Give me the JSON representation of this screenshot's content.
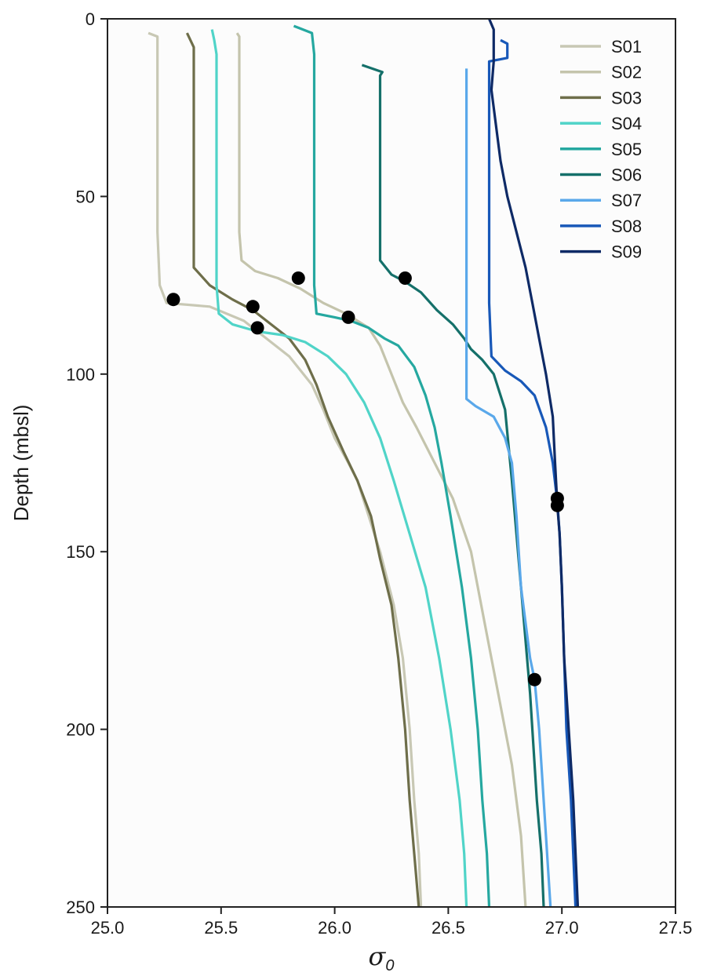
{
  "chart_data": {
    "type": "line",
    "ylabel": "Depth (mbsl)",
    "xlabel_symbol": "σ",
    "xlabel_subscript": "0",
    "xlim": [
      25.0,
      27.5
    ],
    "ylim": [
      250,
      0
    ],
    "y_inverted": true,
    "grid": false,
    "legend_position": "top-right",
    "xticks": [
      "25.0",
      "25.5",
      "26.0",
      "26.5",
      "27.0",
      "27.5"
    ],
    "yticks": [
      "0",
      "50",
      "100",
      "150",
      "200",
      "250"
    ],
    "series": [
      {
        "name": "S01",
        "color": "#c8c8b4",
        "points": [
          [
            25.18,
            4
          ],
          [
            25.22,
            5
          ],
          [
            25.22,
            20
          ],
          [
            25.22,
            40
          ],
          [
            25.22,
            60
          ],
          [
            25.23,
            75
          ],
          [
            25.26,
            80
          ],
          [
            25.45,
            81
          ],
          [
            25.6,
            85
          ],
          [
            25.7,
            90
          ],
          [
            25.8,
            95
          ],
          [
            25.9,
            103
          ],
          [
            25.95,
            110
          ],
          [
            26.0,
            118
          ],
          [
            26.06,
            125
          ],
          [
            26.1,
            130
          ],
          [
            26.15,
            140
          ],
          [
            26.2,
            150
          ],
          [
            26.26,
            165
          ],
          [
            26.3,
            180
          ],
          [
            26.33,
            200
          ],
          [
            26.35,
            220
          ],
          [
            26.37,
            235
          ],
          [
            26.38,
            250
          ]
        ]
      },
      {
        "name": "S02",
        "color": "#c4c4ac",
        "points": [
          [
            25.57,
            4
          ],
          [
            25.58,
            5
          ],
          [
            25.58,
            20
          ],
          [
            25.58,
            40
          ],
          [
            25.58,
            60
          ],
          [
            25.59,
            68
          ],
          [
            25.65,
            71
          ],
          [
            25.75,
            73
          ],
          [
            25.85,
            76
          ],
          [
            25.95,
            80
          ],
          [
            26.05,
            83
          ],
          [
            26.15,
            87
          ],
          [
            26.2,
            92
          ],
          [
            26.25,
            100
          ],
          [
            26.3,
            108
          ],
          [
            26.36,
            115
          ],
          [
            26.44,
            125
          ],
          [
            26.52,
            135
          ],
          [
            26.6,
            150
          ],
          [
            26.66,
            170
          ],
          [
            26.72,
            190
          ],
          [
            26.78,
            210
          ],
          [
            26.82,
            230
          ],
          [
            26.84,
            250
          ]
        ]
      },
      {
        "name": "S03",
        "color": "#6e6e4a",
        "points": [
          [
            25.35,
            4
          ],
          [
            25.38,
            8
          ],
          [
            25.38,
            20
          ],
          [
            25.38,
            40
          ],
          [
            25.38,
            60
          ],
          [
            25.38,
            70
          ],
          [
            25.45,
            75
          ],
          [
            25.55,
            79
          ],
          [
            25.64,
            82
          ],
          [
            25.72,
            86
          ],
          [
            25.8,
            90
          ],
          [
            25.87,
            96
          ],
          [
            25.92,
            103
          ],
          [
            25.97,
            112
          ],
          [
            26.04,
            122
          ],
          [
            26.1,
            130
          ],
          [
            26.16,
            140
          ],
          [
            26.2,
            152
          ],
          [
            26.25,
            165
          ],
          [
            26.28,
            180
          ],
          [
            26.31,
            200
          ],
          [
            26.33,
            220
          ],
          [
            26.35,
            235
          ],
          [
            26.37,
            250
          ]
        ]
      },
      {
        "name": "S04",
        "color": "#50d4c8",
        "points": [
          [
            25.46,
            3
          ],
          [
            25.47,
            6
          ],
          [
            25.48,
            10
          ],
          [
            25.48,
            20
          ],
          [
            25.48,
            40
          ],
          [
            25.48,
            60
          ],
          [
            25.48,
            75
          ],
          [
            25.49,
            83
          ],
          [
            25.55,
            86
          ],
          [
            25.66,
            88
          ],
          [
            25.77,
            89
          ],
          [
            25.87,
            91
          ],
          [
            25.97,
            95
          ],
          [
            26.05,
            100
          ],
          [
            26.13,
            108
          ],
          [
            26.2,
            118
          ],
          [
            26.26,
            130
          ],
          [
            26.33,
            145
          ],
          [
            26.4,
            160
          ],
          [
            26.46,
            180
          ],
          [
            26.51,
            200
          ],
          [
            26.55,
            220
          ],
          [
            26.57,
            235
          ],
          [
            26.58,
            250
          ]
        ]
      },
      {
        "name": "S05",
        "color": "#25a8a0",
        "points": [
          [
            25.82,
            2
          ],
          [
            25.9,
            4
          ],
          [
            25.91,
            10
          ],
          [
            25.91,
            20
          ],
          [
            25.91,
            40
          ],
          [
            25.91,
            60
          ],
          [
            25.91,
            75
          ],
          [
            25.92,
            83
          ],
          [
            26.0,
            84
          ],
          [
            26.07,
            85
          ],
          [
            26.15,
            87
          ],
          [
            26.22,
            90
          ],
          [
            26.28,
            92
          ],
          [
            26.35,
            98
          ],
          [
            26.4,
            106
          ],
          [
            26.44,
            115
          ],
          [
            26.47,
            125
          ],
          [
            26.51,
            140
          ],
          [
            26.56,
            160
          ],
          [
            26.6,
            180
          ],
          [
            26.63,
            200
          ],
          [
            26.65,
            220
          ],
          [
            26.67,
            235
          ],
          [
            26.68,
            250
          ]
        ]
      },
      {
        "name": "S06",
        "color": "#15706a",
        "points": [
          [
            26.12,
            13
          ],
          [
            26.21,
            15
          ],
          [
            26.2,
            16
          ],
          [
            26.2,
            30
          ],
          [
            26.2,
            50
          ],
          [
            26.2,
            68
          ],
          [
            26.25,
            72
          ],
          [
            26.31,
            74
          ],
          [
            26.38,
            77
          ],
          [
            26.45,
            82
          ],
          [
            26.52,
            86
          ],
          [
            26.57,
            90
          ],
          [
            26.6,
            93
          ],
          [
            26.65,
            96
          ],
          [
            26.7,
            100
          ],
          [
            26.75,
            110
          ],
          [
            26.78,
            130
          ],
          [
            26.82,
            160
          ],
          [
            26.86,
            190
          ],
          [
            26.89,
            220
          ],
          [
            26.91,
            235
          ],
          [
            26.92,
            250
          ]
        ]
      },
      {
        "name": "S07",
        "color": "#5aa8ea",
        "points": [
          [
            26.58,
            14
          ],
          [
            26.58,
            30
          ],
          [
            26.58,
            60
          ],
          [
            26.58,
            90
          ],
          [
            26.58,
            107
          ],
          [
            26.62,
            109
          ],
          [
            26.7,
            112
          ],
          [
            26.75,
            118
          ],
          [
            26.78,
            125
          ],
          [
            26.8,
            140
          ],
          [
            26.82,
            160
          ],
          [
            26.86,
            180
          ],
          [
            26.88,
            186
          ],
          [
            26.9,
            200
          ],
          [
            26.92,
            220
          ],
          [
            26.94,
            240
          ],
          [
            26.95,
            250
          ]
        ]
      },
      {
        "name": "S08",
        "color": "#1858b8",
        "points": [
          [
            26.73,
            6
          ],
          [
            26.76,
            7
          ],
          [
            26.76,
            11
          ],
          [
            26.68,
            12
          ],
          [
            26.68,
            20
          ],
          [
            26.68,
            40
          ],
          [
            26.68,
            60
          ],
          [
            26.68,
            80
          ],
          [
            26.69,
            95
          ],
          [
            26.75,
            99
          ],
          [
            26.82,
            102
          ],
          [
            26.88,
            106
          ],
          [
            26.93,
            115
          ],
          [
            26.96,
            125
          ],
          [
            26.98,
            136
          ],
          [
            26.99,
            145
          ],
          [
            27.0,
            160
          ],
          [
            27.01,
            180
          ],
          [
            27.02,
            200
          ],
          [
            27.04,
            220
          ],
          [
            27.05,
            235
          ],
          [
            27.06,
            250
          ]
        ]
      },
      {
        "name": "S09",
        "color": "#0e2a66",
        "points": [
          [
            26.68,
            0
          ],
          [
            26.7,
            3
          ],
          [
            26.7,
            6
          ],
          [
            26.7,
            12
          ],
          [
            26.69,
            20
          ],
          [
            26.71,
            30
          ],
          [
            26.73,
            40
          ],
          [
            26.76,
            50
          ],
          [
            26.8,
            60
          ],
          [
            26.84,
            70
          ],
          [
            26.87,
            80
          ],
          [
            26.9,
            90
          ],
          [
            26.93,
            100
          ],
          [
            26.96,
            112
          ],
          [
            26.97,
            125
          ],
          [
            26.98,
            137
          ],
          [
            26.99,
            145
          ],
          [
            27.0,
            160
          ],
          [
            27.01,
            180
          ],
          [
            27.03,
            200
          ],
          [
            27.05,
            220
          ],
          [
            27.06,
            235
          ],
          [
            27.07,
            250
          ]
        ]
      }
    ],
    "markers": [
      {
        "x": 25.29,
        "y": 79
      },
      {
        "x": 25.64,
        "y": 81
      },
      {
        "x": 25.84,
        "y": 73
      },
      {
        "x": 25.66,
        "y": 87
      },
      {
        "x": 26.06,
        "y": 84
      },
      {
        "x": 26.31,
        "y": 73
      },
      {
        "x": 26.88,
        "y": 186
      },
      {
        "x": 26.98,
        "y": 135
      },
      {
        "x": 26.98,
        "y": 137
      }
    ]
  }
}
